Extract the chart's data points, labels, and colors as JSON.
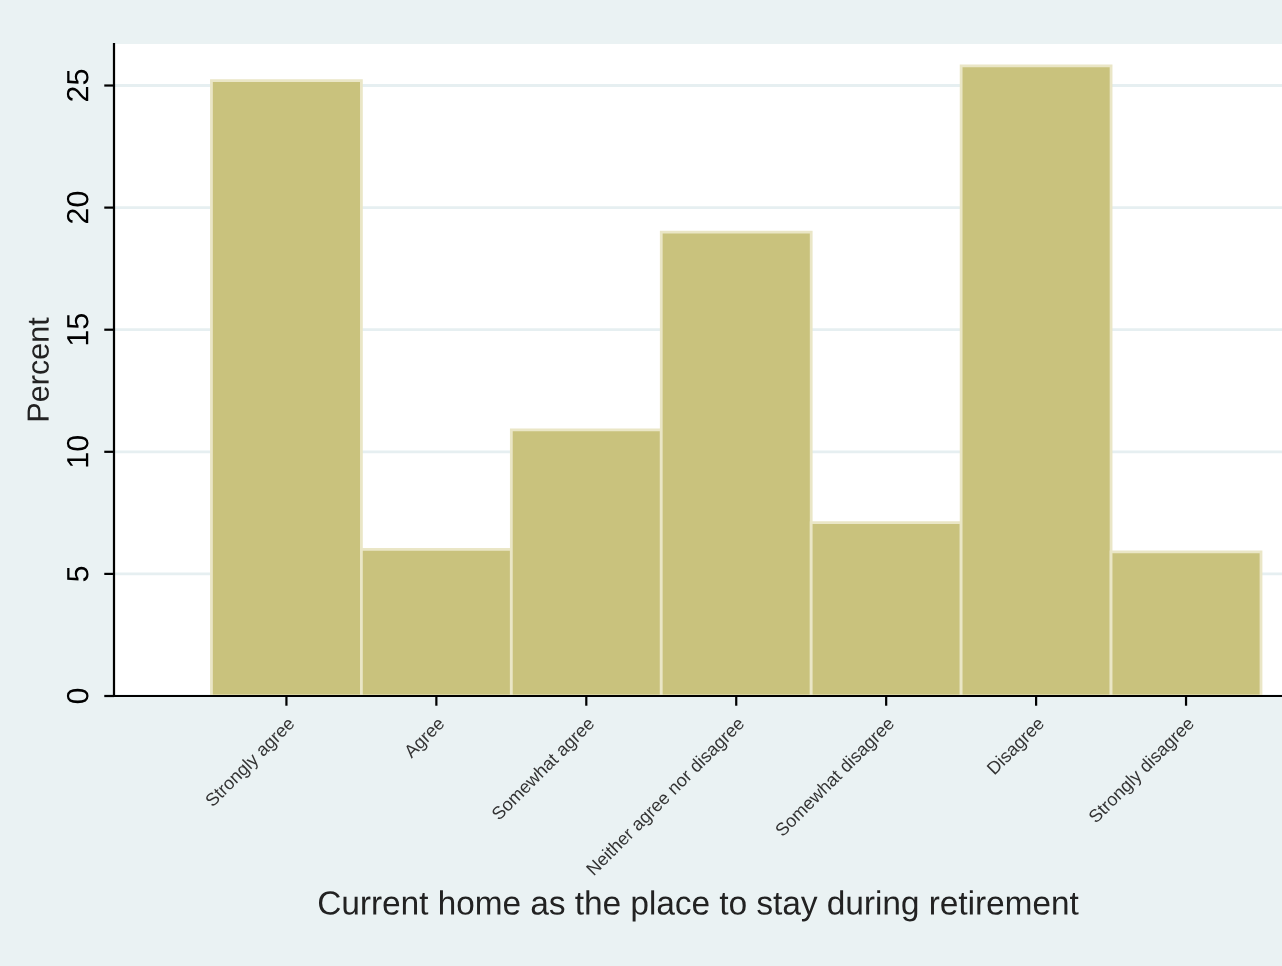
{
  "chart_data": {
    "type": "bar",
    "xlabel": "Current home as the place to stay during retirement",
    "ylabel": "Percent",
    "categories": [
      "Strongly agree",
      "Agree",
      "Somewhat agree",
      "Neither agree nor disagree",
      "Somewhat disagree",
      "Disagree",
      "Strongly disagree"
    ],
    "values": [
      25.2,
      6.0,
      10.9,
      19.0,
      7.1,
      25.8,
      5.9
    ],
    "color": "#c9c27d",
    "ylim": [
      0,
      26.7
    ],
    "yticks": [
      0,
      5,
      10,
      15,
      20,
      25
    ],
    "grid": "y"
  }
}
